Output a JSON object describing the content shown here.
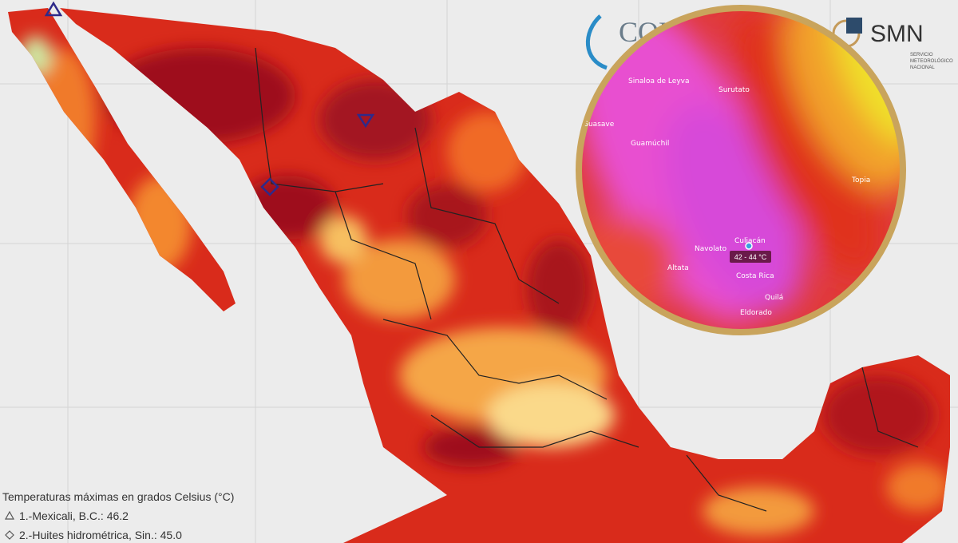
{
  "header": {
    "logo_left": "CON",
    "logo_right": "SMN",
    "logo_right_subtitle": [
      "SERVICIO",
      "METEOROLÓGICO",
      "NACIONAL"
    ]
  },
  "legend": {
    "title": "Temperaturas máximas en grados Celsius (°C)",
    "items": [
      "1.-Mexicali, B.C.: 46.2",
      "2.-Huites hidrométrica, Sin.: 45.0"
    ]
  },
  "inset": {
    "places": [
      "Sinaloa de Leyva",
      "Surutato",
      "Guasave",
      "Guamúchil",
      "Topia",
      "Culiacán",
      "Navolato",
      "Altata",
      "Costa Rica",
      "Quilá",
      "Eldorado"
    ],
    "value_label": "42 - 44 °C"
  }
}
